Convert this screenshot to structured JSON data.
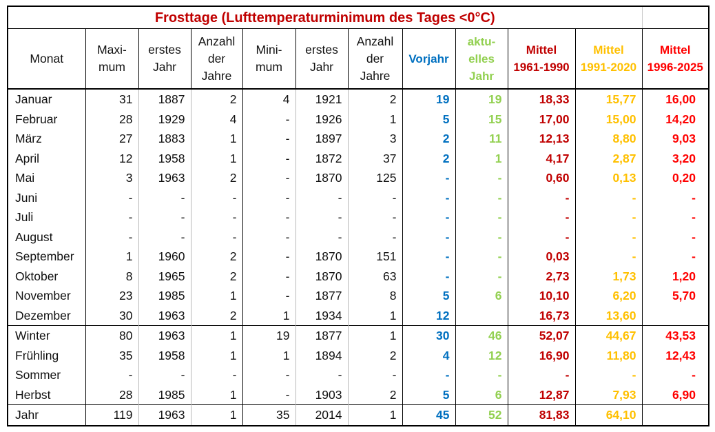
{
  "title": "Frosttage (Lufttemperaturminimum des Tages <0°C)",
  "headers": {
    "monat": "Monat",
    "maximum": [
      "Maxi-",
      "mum"
    ],
    "erstes_jahr_max": [
      "erstes",
      "Jahr"
    ],
    "anzahl_max": [
      "Anzahl",
      "der",
      "Jahre"
    ],
    "minimum": [
      "Mini-",
      "mum"
    ],
    "erstes_jahr_min": [
      "erstes",
      "Jahr"
    ],
    "anzahl_min": [
      "Anzahl",
      "der",
      "Jahre"
    ],
    "vorjahr": "Vorjahr",
    "aktuelles_jahr": [
      "aktu-",
      "elles",
      "Jahr"
    ],
    "mittel_1961": [
      "Mittel",
      "1961-1990"
    ],
    "mittel_1991": [
      "Mittel",
      "1991-2020"
    ],
    "mittel_1996": [
      "Mittel",
      "1996-2025"
    ]
  },
  "rows": [
    {
      "monat": "Januar",
      "max": "31",
      "ej1": "1887",
      "az1": "2",
      "min": "4",
      "ej2": "1921",
      "az2": "2",
      "vorjahr": "19",
      "aktuell": "19",
      "m1961": "18,33",
      "m1991": "15,77",
      "m1996": "16,00"
    },
    {
      "monat": "Februar",
      "max": "28",
      "ej1": "1929",
      "az1": "4",
      "min": "-",
      "ej2": "1926",
      "az2": "1",
      "vorjahr": "5",
      "aktuell": "15",
      "m1961": "17,00",
      "m1991": "15,00",
      "m1996": "14,20"
    },
    {
      "monat": "März",
      "max": "27",
      "ej1": "1883",
      "az1": "1",
      "min": "-",
      "ej2": "1897",
      "az2": "3",
      "vorjahr": "2",
      "aktuell": "11",
      "m1961": "12,13",
      "m1991": "8,80",
      "m1996": "9,03"
    },
    {
      "monat": "April",
      "max": "12",
      "ej1": "1958",
      "az1": "1",
      "min": "-",
      "ej2": "1872",
      "az2": "37",
      "vorjahr": "2",
      "aktuell": "1",
      "m1961": "4,17",
      "m1991": "2,87",
      "m1996": "3,20"
    },
    {
      "monat": "Mai",
      "max": "3",
      "ej1": "1963",
      "az1": "2",
      "min": "-",
      "ej2": "1870",
      "az2": "125",
      "vorjahr": "-",
      "aktuell": "-",
      "m1961": "0,60",
      "m1991": "0,13",
      "m1996": "0,20"
    },
    {
      "monat": "Juni",
      "max": "-",
      "ej1": "-",
      "az1": "-",
      "min": "-",
      "ej2": "-",
      "az2": "-",
      "vorjahr": "-",
      "aktuell": "-",
      "m1961": "-",
      "m1991": "-",
      "m1996": "-"
    },
    {
      "monat": "Juli",
      "max": "-",
      "ej1": "-",
      "az1": "-",
      "min": "-",
      "ej2": "-",
      "az2": "-",
      "vorjahr": "-",
      "aktuell": "-",
      "m1961": "-",
      "m1991": "-",
      "m1996": "-"
    },
    {
      "monat": "August",
      "max": "-",
      "ej1": "-",
      "az1": "-",
      "min": "-",
      "ej2": "-",
      "az2": "-",
      "vorjahr": "-",
      "aktuell": "-",
      "m1961": "-",
      "m1991": "-",
      "m1996": "-"
    },
    {
      "monat": "September",
      "max": "1",
      "ej1": "1960",
      "az1": "2",
      "min": "-",
      "ej2": "1870",
      "az2": "151",
      "vorjahr": "-",
      "aktuell": "-",
      "m1961": "0,03",
      "m1991": "-",
      "m1996": "-"
    },
    {
      "monat": "Oktober",
      "max": "8",
      "ej1": "1965",
      "az1": "2",
      "min": "-",
      "ej2": "1870",
      "az2": "63",
      "vorjahr": "-",
      "aktuell": "-",
      "m1961": "2,73",
      "m1991": "1,73",
      "m1996": "1,20"
    },
    {
      "monat": "November",
      "max": "23",
      "ej1": "1985",
      "az1": "1",
      "min": "-",
      "ej2": "1877",
      "az2": "8",
      "vorjahr": "5",
      "aktuell": "6",
      "m1961": "10,10",
      "m1991": "6,20",
      "m1996": "5,70"
    },
    {
      "monat": "Dezember",
      "max": "30",
      "ej1": "1963",
      "az1": "2",
      "min": "1",
      "ej2": "1934",
      "az2": "1",
      "vorjahr": "12",
      "aktuell": "",
      "m1961": "16,73",
      "m1991": "13,60",
      "m1996": ""
    },
    {
      "monat": "Winter",
      "max": "80",
      "ej1": "1963",
      "az1": "1",
      "min": "19",
      "ej2": "1877",
      "az2": "1",
      "vorjahr": "30",
      "aktuell": "46",
      "m1961": "52,07",
      "m1991": "44,67",
      "m1996": "43,53"
    },
    {
      "monat": "Frühling",
      "max": "35",
      "ej1": "1958",
      "az1": "1",
      "min": "1",
      "ej2": "1894",
      "az2": "2",
      "vorjahr": "4",
      "aktuell": "12",
      "m1961": "16,90",
      "m1991": "11,80",
      "m1996": "12,43"
    },
    {
      "monat": "Sommer",
      "max": "-",
      "ej1": "-",
      "az1": "-",
      "min": "-",
      "ej2": "-",
      "az2": "-",
      "vorjahr": "-",
      "aktuell": "-",
      "m1961": "-",
      "m1991": "-",
      "m1996": "-"
    },
    {
      "monat": "Herbst",
      "max": "28",
      "ej1": "1985",
      "az1": "1",
      "min": "-",
      "ej2": "1903",
      "az2": "2",
      "vorjahr": "5",
      "aktuell": "6",
      "m1961": "12,87",
      "m1991": "7,93",
      "m1996": "6,90"
    },
    {
      "monat": "Jahr",
      "max": "119",
      "ej1": "1963",
      "az1": "1",
      "min": "35",
      "ej2": "2014",
      "az2": "1",
      "vorjahr": "45",
      "aktuell": "52",
      "m1961": "81,83",
      "m1991": "64,10",
      "m1996": ""
    }
  ],
  "colors": {
    "title": "#c00000",
    "vorjahr": "#0070c0",
    "aktuell": "#92d050",
    "mittel_1961": "#c00000",
    "mittel_1991": "#ffc000",
    "mittel_1996": "#ff0000"
  }
}
